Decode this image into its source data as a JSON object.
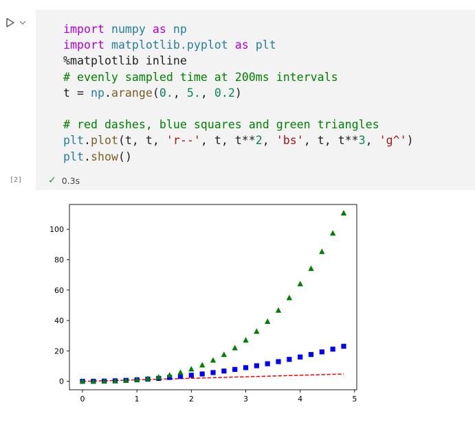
{
  "cell": {
    "execution_count": "[2]",
    "status_text": "0.3s",
    "output_collapse_label": "...",
    "code_lines": [
      [
        {
          "t": "import",
          "c": "kw"
        },
        {
          "t": " ",
          "c": "plain"
        },
        {
          "t": "numpy",
          "c": "mod"
        },
        {
          "t": " ",
          "c": "plain"
        },
        {
          "t": "as",
          "c": "kw"
        },
        {
          "t": " ",
          "c": "plain"
        },
        {
          "t": "np",
          "c": "mod"
        }
      ],
      [
        {
          "t": "import",
          "c": "kw"
        },
        {
          "t": " ",
          "c": "plain"
        },
        {
          "t": "matplotlib.pyplot",
          "c": "mod"
        },
        {
          "t": " ",
          "c": "plain"
        },
        {
          "t": "as",
          "c": "kw"
        },
        {
          "t": " ",
          "c": "plain"
        },
        {
          "t": "plt",
          "c": "mod"
        }
      ],
      [
        {
          "t": "%matplotlib inline",
          "c": "plain"
        }
      ],
      [
        {
          "t": "# evenly sampled time at 200ms intervals",
          "c": "cm"
        }
      ],
      [
        {
          "t": "t = ",
          "c": "plain"
        },
        {
          "t": "np",
          "c": "mod"
        },
        {
          "t": ".",
          "c": "plain"
        },
        {
          "t": "arange",
          "c": "fn"
        },
        {
          "t": "(",
          "c": "plain"
        },
        {
          "t": "0.",
          "c": "num"
        },
        {
          "t": ", ",
          "c": "plain"
        },
        {
          "t": "5.",
          "c": "num"
        },
        {
          "t": ", ",
          "c": "plain"
        },
        {
          "t": "0.2",
          "c": "num"
        },
        {
          "t": ")",
          "c": "plain"
        }
      ],
      [],
      [
        {
          "t": "# red dashes, blue squares and green triangles",
          "c": "cm"
        }
      ],
      [
        {
          "t": "plt",
          "c": "mod"
        },
        {
          "t": ".",
          "c": "plain"
        },
        {
          "t": "plot",
          "c": "fn"
        },
        {
          "t": "(t, t, ",
          "c": "plain"
        },
        {
          "t": "'r--'",
          "c": "str"
        },
        {
          "t": ", t, t**",
          "c": "plain"
        },
        {
          "t": "2",
          "c": "num"
        },
        {
          "t": ", ",
          "c": "plain"
        },
        {
          "t": "'bs'",
          "c": "str"
        },
        {
          "t": ", t, t**",
          "c": "plain"
        },
        {
          "t": "3",
          "c": "num"
        },
        {
          "t": ", ",
          "c": "plain"
        },
        {
          "t": "'g^'",
          "c": "str"
        },
        {
          "t": ")",
          "c": "plain"
        }
      ],
      [
        {
          "t": "plt",
          "c": "mod"
        },
        {
          "t": ".",
          "c": "plain"
        },
        {
          "t": "show",
          "c": "fn"
        },
        {
          "t": "()",
          "c": "plain"
        }
      ]
    ]
  },
  "icons": {
    "run": "play-triangle-outline",
    "menu": "chevron-down",
    "success": "check-mark"
  },
  "colors": {
    "cell_bg": "#f3f3f3",
    "success": "#388a34",
    "red_line": "#ff0000",
    "blue_squares": "#0000ff",
    "green_triangles": "#008000"
  },
  "chart_data": {
    "type": "line",
    "title": "",
    "xlabel": "",
    "ylabel": "",
    "xlim": [
      -0.24,
      5.04
    ],
    "ylim": [
      -5.53,
      116.29
    ],
    "xticks": [
      0,
      1,
      2,
      3,
      4,
      5
    ],
    "yticks": [
      0,
      20,
      40,
      60,
      80,
      100
    ],
    "grid": false,
    "x": [
      0,
      0.2,
      0.4,
      0.6,
      0.8,
      1.0,
      1.2,
      1.4,
      1.6,
      1.8,
      2.0,
      2.2,
      2.4,
      2.6,
      2.8,
      3.0,
      3.2,
      3.4,
      3.6,
      3.8,
      4.0,
      4.2,
      4.4,
      4.6,
      4.8
    ],
    "series": [
      {
        "style": "r--",
        "values": [
          0,
          0.2,
          0.4,
          0.6,
          0.8,
          1.0,
          1.2,
          1.4,
          1.6,
          1.8,
          2.0,
          2.2,
          2.4,
          2.6,
          2.8,
          3.0,
          3.2,
          3.4,
          3.6,
          3.8,
          4.0,
          4.2,
          4.4,
          4.6,
          4.8
        ]
      },
      {
        "style": "bs",
        "values": [
          0,
          0.04,
          0.16,
          0.36,
          0.64,
          1.0,
          1.44,
          1.96,
          2.56,
          3.24,
          4.0,
          4.84,
          5.76,
          6.76,
          7.84,
          9.0,
          10.24,
          11.56,
          12.96,
          14.44,
          16.0,
          17.64,
          19.36,
          21.16,
          23.04
        ]
      },
      {
        "style": "g^",
        "values": [
          0,
          0.008,
          0.064,
          0.216,
          0.512,
          1.0,
          1.728,
          2.744,
          4.096,
          5.832,
          8.0,
          10.648,
          13.824,
          17.576,
          21.952,
          27.0,
          32.768,
          39.304,
          46.656,
          54.872,
          64.0,
          74.088,
          85.184,
          97.336,
          110.592
        ]
      }
    ]
  }
}
